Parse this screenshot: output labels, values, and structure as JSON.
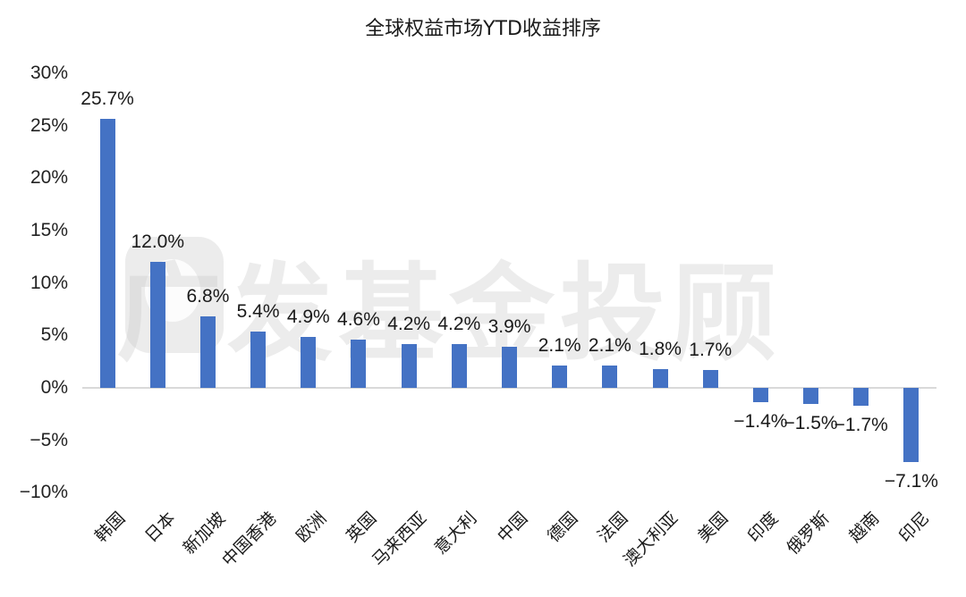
{
  "chart_data": {
    "type": "bar",
    "title": "全球权益市场YTD收益排序",
    "xlabel": "",
    "ylabel": "",
    "ylim": [
      -0.1,
      0.3
    ],
    "yticks": [
      "30%",
      "25%",
      "20%",
      "15%",
      "10%",
      "5%",
      "0%",
      "−5%",
      "−10%"
    ],
    "ytick_values": [
      30,
      25,
      20,
      15,
      10,
      5,
      0,
      -5,
      -10
    ],
    "grid": false,
    "legend": null,
    "bar_color": "#4472c4",
    "categories": [
      "韩国",
      "日本",
      "新加坡",
      "中国香港",
      "欧洲",
      "英国",
      "马来西亚",
      "意大利",
      "中国",
      "德国",
      "法国",
      "澳大利亚",
      "美国",
      "印度",
      "俄罗斯",
      "越南",
      "印尼"
    ],
    "values": [
      25.7,
      12.0,
      6.8,
      5.4,
      4.9,
      4.6,
      4.2,
      4.2,
      3.9,
      2.1,
      2.1,
      1.8,
      1.7,
      -1.4,
      -1.5,
      -1.7,
      -7.1
    ],
    "data_labels": [
      "25.7%",
      "12.0%",
      "6.8%",
      "5.4%",
      "4.9%",
      "4.6%",
      "4.2%",
      "4.2%",
      "3.9%",
      "2.1%",
      "2.1%",
      "1.8%",
      "1.7%",
      "−1.4%",
      "−1.5%",
      "−1.7%",
      "−7.1%"
    ],
    "unit": "%"
  },
  "watermark": "广发基金投顾"
}
